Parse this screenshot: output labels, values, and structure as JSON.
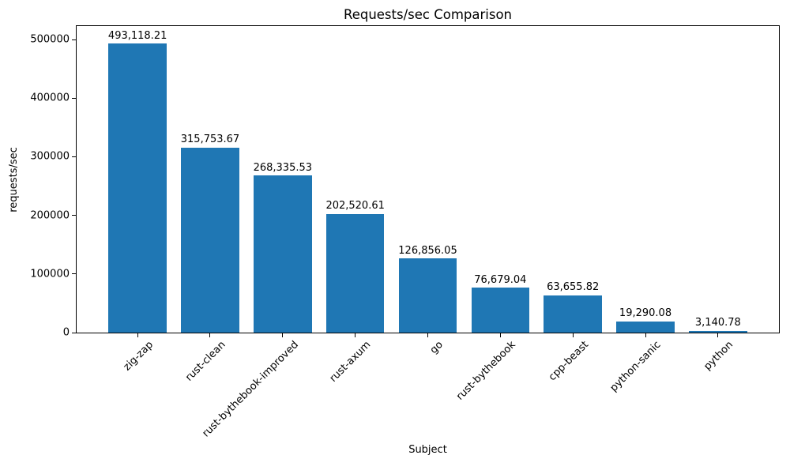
{
  "chart_data": {
    "type": "bar",
    "title": "Requests/sec Comparison",
    "xlabel": "Subject",
    "ylabel": "requests/sec",
    "categories": [
      "zig-zap",
      "rust-clean",
      "rust-bythebook-improved",
      "rust-axum",
      "go",
      "rust-bythebook",
      "cpp-beast",
      "python-sanic",
      "python"
    ],
    "values": [
      493118.21,
      315753.67,
      268335.53,
      202520.61,
      126856.05,
      76679.04,
      63655.82,
      19290.08,
      3140.78
    ],
    "value_labels": [
      "493,118.21",
      "315,753.67",
      "268,335.53",
      "202,520.61",
      "126,856.05",
      "76,679.04",
      "63,655.82",
      "19,290.08",
      "3,140.78"
    ],
    "yticks": [
      0,
      100000,
      200000,
      300000,
      400000,
      500000
    ],
    "ytick_labels": [
      "0",
      "100000",
      "200000",
      "300000",
      "400000",
      "500000"
    ],
    "ylim": [
      0,
      523000
    ],
    "bar_color": "#1f77b4",
    "text_color": "#000000",
    "grid": false,
    "legend_position": "none",
    "bar_width_fraction": 0.8,
    "xtick_rotation_deg": 45
  }
}
